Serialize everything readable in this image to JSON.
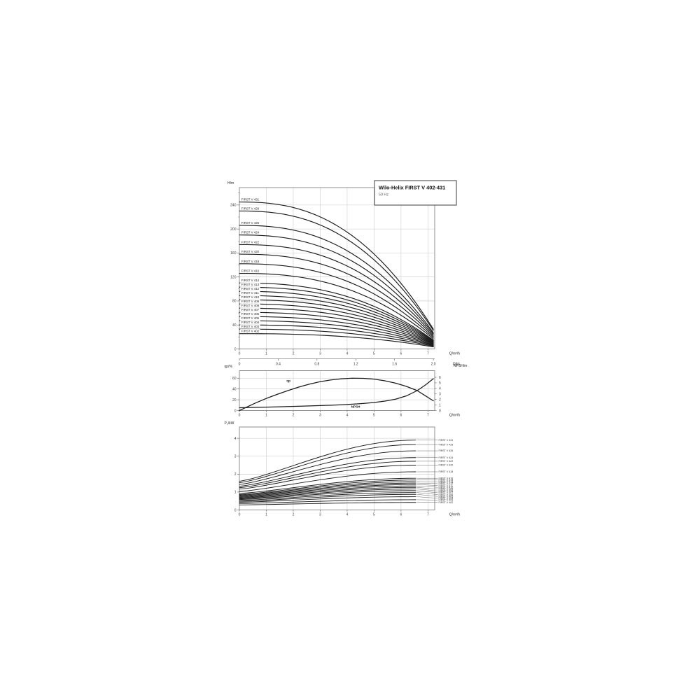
{
  "figure": {
    "title": "Wilo-Helix FIRST V 402-431",
    "subtitle": "50 Hz"
  },
  "colors": {
    "curve": "#1b1b1b",
    "grid": "#c8c8c8",
    "border": "#8f8f8f",
    "tick_text": "#3a3a3a",
    "unit_text": "#222222",
    "label_text": "#222222",
    "leader": "#555555",
    "title_border": "#4d4d4d"
  },
  "chart_data": [
    {
      "type": "line",
      "name": "head_curves",
      "ylabel": "H/m",
      "xlabel": "Q/m³/h",
      "xlabel2": "Q/l/s",
      "xlim": [
        0,
        7.25
      ],
      "ylim": [
        0,
        269
      ],
      "qmax": 7.2,
      "x2_factor": 3.6,
      "xticks": [
        0,
        1,
        2,
        3,
        4,
        5,
        6,
        7
      ],
      "xticks2": [
        0,
        0.4,
        0.8,
        1.2,
        1.6,
        2.0
      ],
      "yticks": [
        0,
        40,
        80,
        120,
        160,
        200,
        240
      ],
      "curve_exponent": 2.45,
      "series": [
        {
          "name": "FIRST V 431",
          "h_shutoff": 245,
          "h_at_qmax": 33
        },
        {
          "name": "FIRST V 429",
          "h_shutoff": 230,
          "h_at_qmax": 31
        },
        {
          "name": "FIRST V 426",
          "h_shutoff": 206,
          "h_at_qmax": 27.5
        },
        {
          "name": "FIRST V 424",
          "h_shutoff": 190,
          "h_at_qmax": 25.5
        },
        {
          "name": "FIRST V 422",
          "h_shutoff": 174,
          "h_at_qmax": 23.3
        },
        {
          "name": "FIRST V 420",
          "h_shutoff": 158,
          "h_at_qmax": 21.2
        },
        {
          "name": "FIRST V 418",
          "h_shutoff": 142,
          "h_at_qmax": 19
        },
        {
          "name": "FIRST V 416",
          "h_shutoff": 126,
          "h_at_qmax": 16.9
        },
        {
          "name": "FIRST V 414",
          "h_shutoff": 110,
          "h_at_qmax": 14.7
        },
        {
          "name": "FIRST V 413",
          "h_shutoff": 103,
          "h_at_qmax": 13.8
        },
        {
          "name": "FIRST V 412",
          "h_shutoff": 96,
          "h_at_qmax": 12.9
        },
        {
          "name": "FIRST V 411",
          "h_shutoff": 89,
          "h_at_qmax": 11.9
        },
        {
          "name": "FIRST V 410",
          "h_shutoff": 82,
          "h_at_qmax": 11
        },
        {
          "name": "FIRST V 409",
          "h_shutoff": 75,
          "h_at_qmax": 10
        },
        {
          "name": "FIRST V 408",
          "h_shutoff": 68,
          "h_at_qmax": 9.1
        },
        {
          "name": "FIRST V 407",
          "h_shutoff": 61,
          "h_at_qmax": 8.2
        },
        {
          "name": "FIRST V 406",
          "h_shutoff": 54,
          "h_at_qmax": 7.2
        },
        {
          "name": "FIRST V 405",
          "h_shutoff": 47,
          "h_at_qmax": 6.3
        },
        {
          "name": "FIRST V 404",
          "h_shutoff": 40,
          "h_at_qmax": 5.4
        },
        {
          "name": "FIRST V 403",
          "h_shutoff": 33,
          "h_at_qmax": 4.4
        },
        {
          "name": "FIRST V 402",
          "h_shutoff": 25.5,
          "h_at_qmax": 3.4
        }
      ]
    },
    {
      "type": "line",
      "name": "efficiency_and_npsh",
      "ylabel_left": "ηp/%",
      "ylabel_right": "NPSH/m",
      "xlabel": "Q/m³/h",
      "xlim": [
        0,
        7.25
      ],
      "ylim_left": [
        0,
        74
      ],
      "ylim_right": [
        0,
        7.2
      ],
      "xticks": [
        0,
        1,
        2,
        3,
        4,
        5,
        6,
        7
      ],
      "yticks_left": [
        0,
        20,
        40,
        60
      ],
      "yticks_right": [
        0,
        1,
        2,
        3,
        4,
        5,
        6
      ],
      "eta_label": "ηp",
      "npsh_label": "NPSH",
      "eta_points": [
        [
          0,
          0
        ],
        [
          0.3,
          7
        ],
        [
          0.6,
          14
        ],
        [
          1,
          22.5
        ],
        [
          1.4,
          30
        ],
        [
          1.8,
          37
        ],
        [
          2.2,
          43.5
        ],
        [
          2.6,
          49
        ],
        [
          3,
          53.5
        ],
        [
          3.4,
          56.8
        ],
        [
          3.8,
          58.9
        ],
        [
          4.2,
          60
        ],
        [
          4.6,
          59.8
        ],
        [
          5,
          58.2
        ],
        [
          5.4,
          55.2
        ],
        [
          5.8,
          50.8
        ],
        [
          6.2,
          44.8
        ],
        [
          6.6,
          37
        ],
        [
          6.9,
          27.5
        ],
        [
          7.2,
          18
        ]
      ],
      "npsh_points": [
        [
          0,
          0.5
        ],
        [
          0.3,
          0.53
        ],
        [
          0.6,
          0.57
        ],
        [
          1,
          0.62
        ],
        [
          1.4,
          0.67
        ],
        [
          1.8,
          0.72
        ],
        [
          2.2,
          0.78
        ],
        [
          2.6,
          0.84
        ],
        [
          3,
          0.9
        ],
        [
          3.4,
          0.97
        ],
        [
          3.8,
          1.05
        ],
        [
          4.2,
          1.15
        ],
        [
          4.6,
          1.28
        ],
        [
          5,
          1.45
        ],
        [
          5.4,
          1.7
        ],
        [
          5.8,
          2.05
        ],
        [
          6.2,
          2.65
        ],
        [
          6.6,
          3.6
        ],
        [
          6.9,
          4.6
        ],
        [
          7.2,
          5.75
        ]
      ]
    },
    {
      "type": "line",
      "name": "power_curves",
      "ylabel": "P₂/kW",
      "xlabel": "Q/m³/h",
      "xlim": [
        0,
        7.3
      ],
      "ylim": [
        0,
        4.63
      ],
      "qend": 6.55,
      "xticks": [
        0,
        1,
        2,
        3,
        4,
        5,
        6,
        7
      ],
      "yticks": [
        0,
        1,
        2,
        3,
        4
      ],
      "curve_exponent": 1.25,
      "series": [
        {
          "name": "FIRST V 431",
          "p0": 1.6,
          "pend": 3.9
        },
        {
          "name": "FIRST V 429",
          "p0": 1.52,
          "pend": 3.65
        },
        {
          "name": "FIRST V 426",
          "p0": 1.42,
          "pend": 3.3
        },
        {
          "name": "FIRST V 424",
          "p0": 1.32,
          "pend": 2.92
        },
        {
          "name": "FIRST V 422",
          "p0": 1.24,
          "pend": 2.72
        },
        {
          "name": "FIRST V 420",
          "p0": 1.16,
          "pend": 2.5
        },
        {
          "name": "FIRST V 418",
          "p0": 1.03,
          "pend": 2.13
        },
        {
          "name": "FIRST V 416",
          "p0": 0.92,
          "pend": 1.77
        },
        {
          "name": "FIRST V 414",
          "p0": 0.86,
          "pend": 1.67
        },
        {
          "name": "FIRST V 413",
          "p0": 0.82,
          "pend": 1.58
        },
        {
          "name": "FIRST V 412",
          "p0": 0.78,
          "pend": 1.5
        },
        {
          "name": "FIRST V 411",
          "p0": 0.74,
          "pend": 1.42
        },
        {
          "name": "FIRST V 410",
          "p0": 0.7,
          "pend": 1.34
        },
        {
          "name": "FIRST V 409",
          "p0": 0.66,
          "pend": 1.26
        },
        {
          "name": "FIRST V 408",
          "p0": 0.62,
          "pend": 1.17
        },
        {
          "name": "FIRST V 407",
          "p0": 0.58,
          "pend": 1.08
        },
        {
          "name": "FIRST V 406",
          "p0": 0.53,
          "pend": 0.97
        },
        {
          "name": "FIRST V 405",
          "p0": 0.48,
          "pend": 0.87
        },
        {
          "name": "FIRST V 404",
          "p0": 0.43,
          "pend": 0.74
        },
        {
          "name": "FIRST V 403",
          "p0": 0.36,
          "pend": 0.57
        },
        {
          "name": "FIRST V 402",
          "p0": 0.28,
          "pend": 0.42
        }
      ]
    }
  ]
}
